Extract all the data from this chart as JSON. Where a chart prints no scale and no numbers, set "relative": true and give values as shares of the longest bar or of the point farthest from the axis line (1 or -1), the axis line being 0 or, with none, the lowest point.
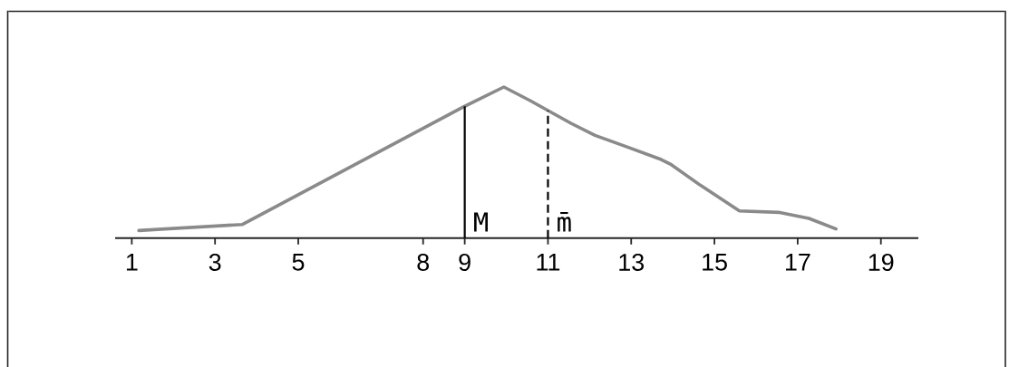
{
  "chart_data": {
    "type": "line",
    "relative": true,
    "x": [
      1.17,
      3.66,
      8.91,
      9.94,
      10.57,
      11.55,
      12.13,
      12.93,
      13.72,
      13.94,
      14.66,
      15.6,
      16.54,
      17.27,
      17.92
    ],
    "values": [
      0.05,
      0.09,
      0.86,
      1,
      0.91,
      0.76,
      0.68,
      0.6,
      0.52,
      0.49,
      0.35,
      0.18,
      0.17,
      0.13,
      0.06
    ],
    "color": "#8a8a8a",
    "xlim": [
      0.6,
      19.9
    ],
    "xticks": [
      1,
      3,
      5,
      8,
      9,
      11,
      13,
      15,
      17,
      19
    ],
    "ref_lines": [
      {
        "axis": "x",
        "value": 9,
        "label": "M",
        "line_style": "solid",
        "color": "#000000"
      },
      {
        "axis": "x",
        "value": 11,
        "label": "m̄",
        "line_style": "dashed",
        "color": "#000000"
      }
    ]
  }
}
